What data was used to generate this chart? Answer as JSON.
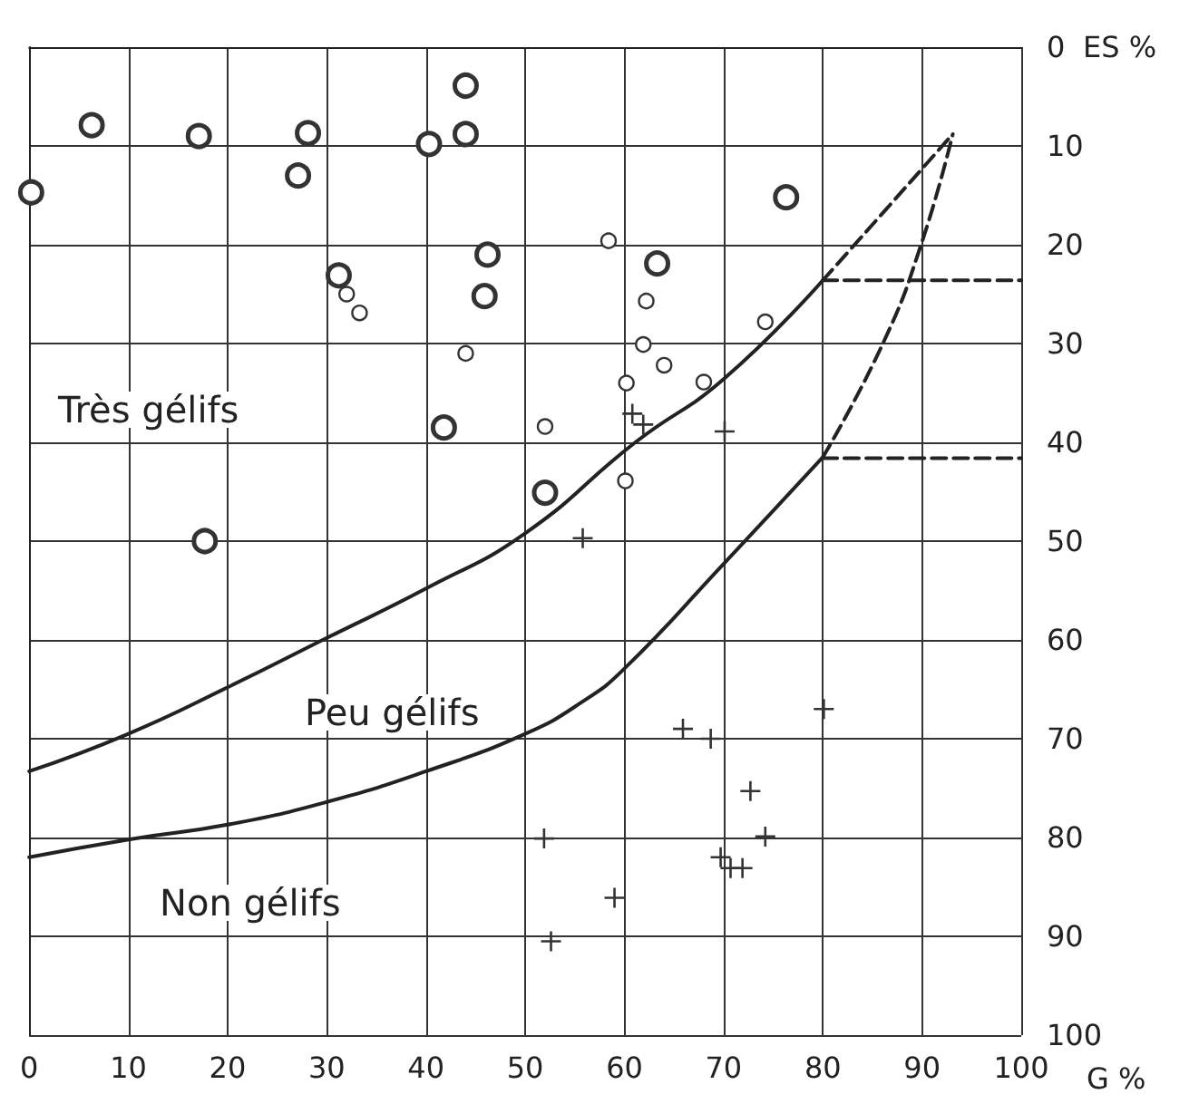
{
  "chart_data": {
    "type": "scatter",
    "xlabel": "G %",
    "ylabel": "ES %",
    "xlim": [
      0,
      100
    ],
    "xticks": [
      0,
      10,
      20,
      30,
      40,
      50,
      60,
      70,
      80,
      90,
      100
    ],
    "ylim": [
      100,
      0
    ],
    "yticks": [
      0,
      10,
      20,
      30,
      40,
      50,
      60,
      70,
      80,
      90,
      100
    ],
    "grid": true,
    "annotations": [
      "Très gélifs",
      "Peu gélifs",
      "Non gélifs"
    ],
    "series": [
      {
        "marker": "circle",
        "color": "#333333",
        "x": [
          0.2,
          6.3,
          17.1,
          28.1,
          27.1,
          40.3,
          44.0,
          44.0,
          46.2,
          45.9,
          31.2,
          41.8,
          52.0,
          17.7,
          76.3,
          63.3
        ],
        "values": [
          14.7,
          7.9,
          9.0,
          8.7,
          13.0,
          9.8,
          3.9,
          8.8,
          21.0,
          25.2,
          23.1,
          38.5,
          45.1,
          50.0,
          15.2,
          21.9
        ]
      },
      {
        "marker": "circle",
        "color": "#333333",
        "x": [
          32.0,
          33.3,
          44.0,
          52.0,
          58.4,
          62.2,
          61.9,
          64.0,
          60.2,
          68.0,
          74.2,
          60.1
        ],
        "values": [
          25.0,
          26.9,
          31.0,
          38.4,
          19.6,
          25.7,
          30.1,
          32.2,
          34.0,
          33.9,
          27.8,
          43.9
        ]
      },
      {
        "marker": "cross",
        "color": "#333333",
        "x": [
          60.8,
          61.9,
          70.1,
          55.8,
          51.9,
          52.6,
          59.0,
          65.9,
          68.7,
          80.1,
          72.7,
          74.2,
          69.7,
          70.7,
          71.9
        ],
        "values": [
          37.1,
          38.2,
          38.9,
          49.7,
          80.1,
          90.5,
          86.1,
          69.0,
          70.0,
          67.0,
          75.3,
          79.9,
          82.0,
          83.1,
          83.1
        ]
      },
      {
        "type": "line",
        "marker": "none",
        "line_style": "solid",
        "color": "#222222",
        "x": [
          0,
          10,
          20,
          30,
          40,
          50,
          61.1,
          70,
          80
        ],
        "values": [
          73.3,
          69.5,
          64.8,
          59.8,
          54.8,
          49.2,
          40,
          33.6,
          23.6
        ]
      },
      {
        "type": "line",
        "marker": "none",
        "line_style": "dashed",
        "color": "#222222",
        "x": [
          80,
          86.3,
          93.1
        ],
        "values": [
          23.6,
          16.5,
          8.8
        ]
      },
      {
        "type": "line",
        "marker": "none",
        "line_style": "solid",
        "color": "#222222",
        "x": [
          0,
          10,
          20,
          30,
          40,
          50,
          55.7,
          60,
          70,
          80
        ],
        "values": [
          82.0,
          80.2,
          78.7,
          76.4,
          73.3,
          69.5,
          66.3,
          62.9,
          52.3,
          41.5
        ]
      },
      {
        "type": "line",
        "marker": "none",
        "line_style": "dashed",
        "color": "#222222",
        "x": [
          80,
          86.1,
          90,
          93.1
        ],
        "values": [
          41.5,
          29.9,
          19.7,
          8.8
        ]
      },
      {
        "type": "line",
        "marker": "none",
        "line_style": "dashed",
        "color": "#222222",
        "x": [
          80,
          100
        ],
        "values": [
          23.6,
          23.6
        ]
      },
      {
        "type": "line",
        "marker": "none",
        "line_style": "dashed",
        "color": "#222222",
        "x": [
          80,
          100
        ],
        "values": [
          41.6,
          41.6
        ]
      }
    ]
  }
}
